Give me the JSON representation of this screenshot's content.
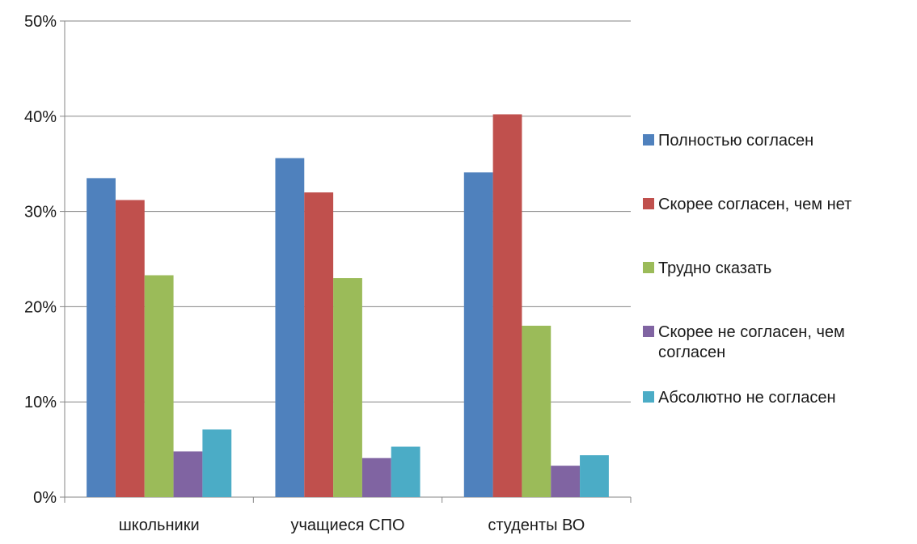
{
  "chart_data": {
    "type": "bar",
    "title": "",
    "xlabel": "",
    "ylabel": "",
    "categories": [
      "школьники",
      "учащиеся СПО",
      "студенты ВО"
    ],
    "ylim": [
      0,
      50
    ],
    "yticks": [
      0,
      10,
      20,
      30,
      40,
      50
    ],
    "ytick_labels": [
      "0%",
      "10%",
      "20%",
      "30%",
      "40%",
      "50%"
    ],
    "grid": true,
    "legend_position": "right",
    "series": [
      {
        "name": "Полностью согласен",
        "color": "#4F81BD",
        "values": [
          33.5,
          35.6,
          34.1
        ]
      },
      {
        "name": "Скорее согласен, чем нет",
        "color": "#C0504D",
        "values": [
          31.2,
          32.0,
          40.2
        ]
      },
      {
        "name": "Трудно сказать",
        "color": "#9BBB59",
        "values": [
          23.3,
          23.0,
          18.0
        ]
      },
      {
        "name": "Скорее не согласен, чем согласен",
        "color": "#8064A2",
        "values": [
          4.8,
          4.1,
          3.3
        ]
      },
      {
        "name": "Абсолютно не согласен",
        "color": "#4BACC6",
        "values": [
          7.1,
          5.3,
          4.4
        ]
      }
    ]
  }
}
